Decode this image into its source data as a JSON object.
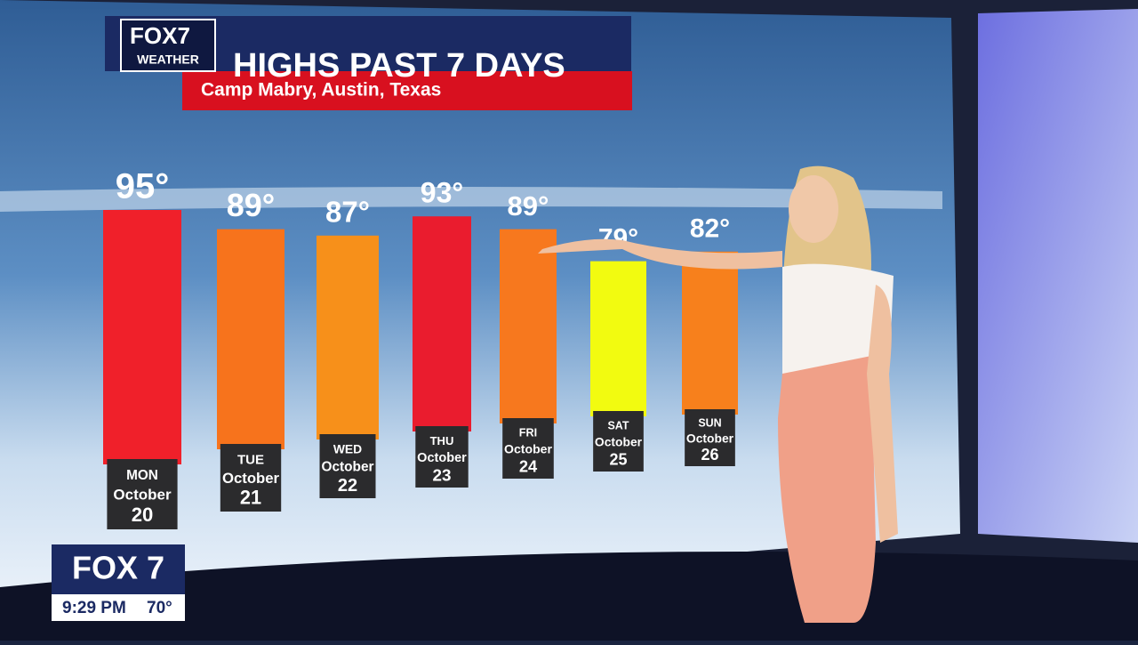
{
  "chart_data": {
    "type": "bar",
    "title": "HIGHS PAST 7 DAYS",
    "subtitle": "Camp Mabry, Austin, Texas",
    "categories": [
      "MON",
      "TUE",
      "WED",
      "THU",
      "FRI",
      "SAT",
      "SUN"
    ],
    "months": [
      "October",
      "October",
      "October",
      "October",
      "October",
      "October",
      "October"
    ],
    "days": [
      "20",
      "21",
      "22",
      "23",
      "24",
      "25",
      "26"
    ],
    "values": [
      95,
      89,
      87,
      93,
      89,
      79,
      82
    ],
    "value_labels": [
      "95°",
      "89°",
      "87°",
      "93°",
      "89°",
      "79°",
      "82°"
    ],
    "colors": [
      "#f0202a",
      "#f7731c",
      "#f7901a",
      "#ea1c2e",
      "#f7781e",
      "#f2fb10",
      "#f7801c"
    ]
  },
  "overlay": {
    "brand": "FOX7",
    "brand_sub": "WEATHER",
    "station": "FOX 7",
    "time": "9:29 PM",
    "temperature": "70°"
  }
}
